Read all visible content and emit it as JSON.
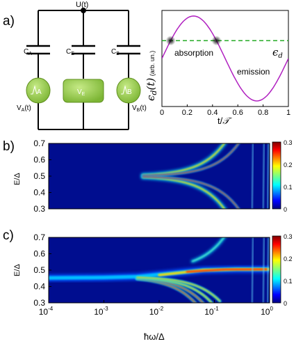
{
  "panel_labels": {
    "a": "a)",
    "b": "b)",
    "c": "c)"
  },
  "circuit": {
    "node_label": "U(t)",
    "capacitors": [
      "C_A",
      "C_E",
      "C_B"
    ],
    "dots": [
      {
        "name": "A",
        "bias_label": "V_A(t)"
      },
      {
        "name": "V_E",
        "bias_label": ""
      },
      {
        "name": "B",
        "bias_label": "V_B(t)"
      }
    ],
    "colors": {
      "dot_green": "#8dc63f",
      "dot_green_dark": "#5f8f1f"
    }
  },
  "chart_data": [
    {
      "type": "line",
      "panel": "a",
      "xlabel": "t/T",
      "ylabel": "εd(t) (arb. un.)",
      "xlim": [
        0,
        1
      ],
      "x_ticks": [
        "0",
        "0.2",
        "0.4",
        "0.6",
        "0.8",
        "1"
      ],
      "series": [
        {
          "name": "",
          "type": "sine",
          "color": "#b020c0",
          "x": [
            0,
            0.25,
            0.5,
            0.75,
            1
          ],
          "y": [
            0,
            1,
            0,
            -1,
            0
          ]
        },
        {
          "name": "",
          "type": "dashed-level",
          "color": "#22aa22",
          "y": 0
        }
      ],
      "annotations": [
        {
          "text": "absorption",
          "x": 0.05,
          "y": 0.3
        },
        {
          "text": "emission",
          "x": 0.52,
          "y": -0.1
        },
        {
          "text": "εd",
          "x": 0.95,
          "y": 0.18
        }
      ]
    },
    {
      "type": "heatmap",
      "panel": "b",
      "xlabel": "ħω/Δ",
      "ylabel": "E/Δ",
      "xscale": "log",
      "xlim": [
        0.0001,
        1
      ],
      "ylim": [
        0.3,
        0.7
      ],
      "y_ticks": [
        "0.3",
        "0.4",
        "0.5",
        "0.6",
        "0.7"
      ],
      "colorbar_ticks": [
        "0",
        "0.1",
        "0.2",
        "0.3"
      ],
      "colorbar_range": [
        0,
        0.3
      ],
      "colormap": "jet",
      "features": "main resonance at E/Δ = 0.5 splitting into symmetric side branches above ħω/Δ ≈ 1e-2"
    },
    {
      "type": "heatmap",
      "panel": "c",
      "xlabel": "ħω/Δ",
      "ylabel": "E/Δ",
      "xscale": "log",
      "xlim": [
        0.0001,
        1
      ],
      "ylim": [
        0.3,
        0.7
      ],
      "y_ticks": [
        "0.3",
        "0.4",
        "0.5",
        "0.6",
        "0.7"
      ],
      "x_ticks": [
        "10^-4",
        "10^-3",
        "10^-2",
        "10^-1",
        "10^0"
      ],
      "colorbar_ticks": [
        "0",
        "0.1",
        "0.2",
        "0.3"
      ],
      "colorbar_range": [
        0,
        0.3
      ],
      "colormap": "jet",
      "features": "resonance starting near E/Δ = 0.45, lower branches fan out to E/Δ ≈ 0.3 around ħω/Δ ≈ 0.02-0.1"
    }
  ]
}
